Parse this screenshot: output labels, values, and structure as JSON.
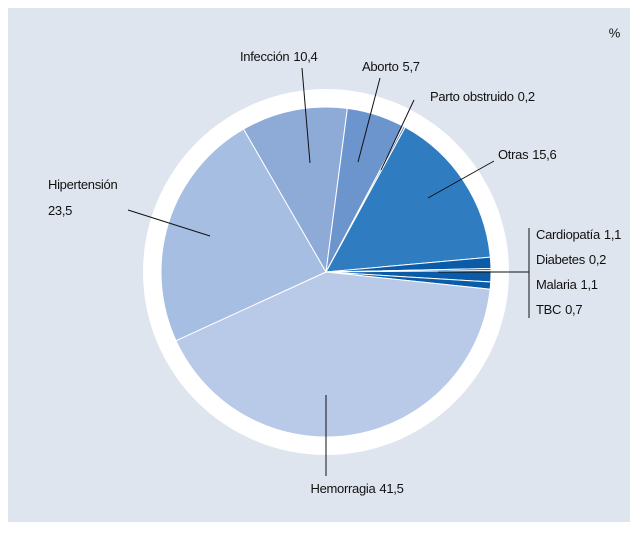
{
  "chart_data": {
    "type": "pie",
    "unit_label": "%",
    "categories": [
      "Infección",
      "Aborto",
      "Parto obstruido",
      "Otras",
      "Cardiopatía",
      "Diabetes",
      "Malaria",
      "TBC",
      "Hemorragia",
      "Hipertensión"
    ],
    "values": [
      10.4,
      5.7,
      0.2,
      15.6,
      1.1,
      0.2,
      1.1,
      0.7,
      41.5,
      23.5
    ],
    "value_labels": [
      "10,4",
      "5,7",
      "0,2",
      "15,6",
      "1,1",
      "0,2",
      "1,1",
      "0,7",
      "41,5",
      "23,5"
    ],
    "colors": [
      "#8eaad6",
      "#6d95cd",
      "#5a86c4",
      "#2f7cc1",
      "#0b5ca8",
      "#0b5ca8",
      "#0b5ca8",
      "#0b5ca8",
      "#b9c9e8",
      "#a7bee3"
    ]
  }
}
